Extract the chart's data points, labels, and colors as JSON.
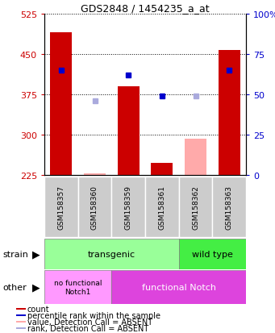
{
  "title": "GDS2848 / 1454235_a_at",
  "samples": [
    "GSM158357",
    "GSM158360",
    "GSM158359",
    "GSM158361",
    "GSM158362",
    "GSM158363"
  ],
  "ylim_left": [
    225,
    525
  ],
  "ylim_right": [
    0,
    100
  ],
  "yticks_left": [
    225,
    300,
    375,
    450,
    525
  ],
  "yticks_right": [
    0,
    25,
    50,
    75,
    100
  ],
  "count_values": [
    490,
    null,
    390,
    248,
    null,
    458
  ],
  "count_absent_values": [
    null,
    228,
    null,
    null,
    293,
    null
  ],
  "rank_pct_values": [
    65,
    null,
    62,
    49,
    null,
    65
  ],
  "rank_pct_absent_values": [
    null,
    46,
    null,
    null,
    49,
    null
  ],
  "count_color": "#cc0000",
  "count_absent_color": "#ffaaaa",
  "rank_color": "#0000cc",
  "rank_absent_color": "#aaaadd",
  "bar_bottom": 225,
  "transgenic_color": "#99ff99",
  "wildtype_color": "#44ee44",
  "nofunctional_color": "#ff99ff",
  "functional_color": "#dd44dd",
  "bg_color": "#ffffff",
  "grid_color": "#000000",
  "tick_color_left": "#cc0000",
  "tick_color_right": "#0000cc",
  "xlabel_bg": "#cccccc"
}
